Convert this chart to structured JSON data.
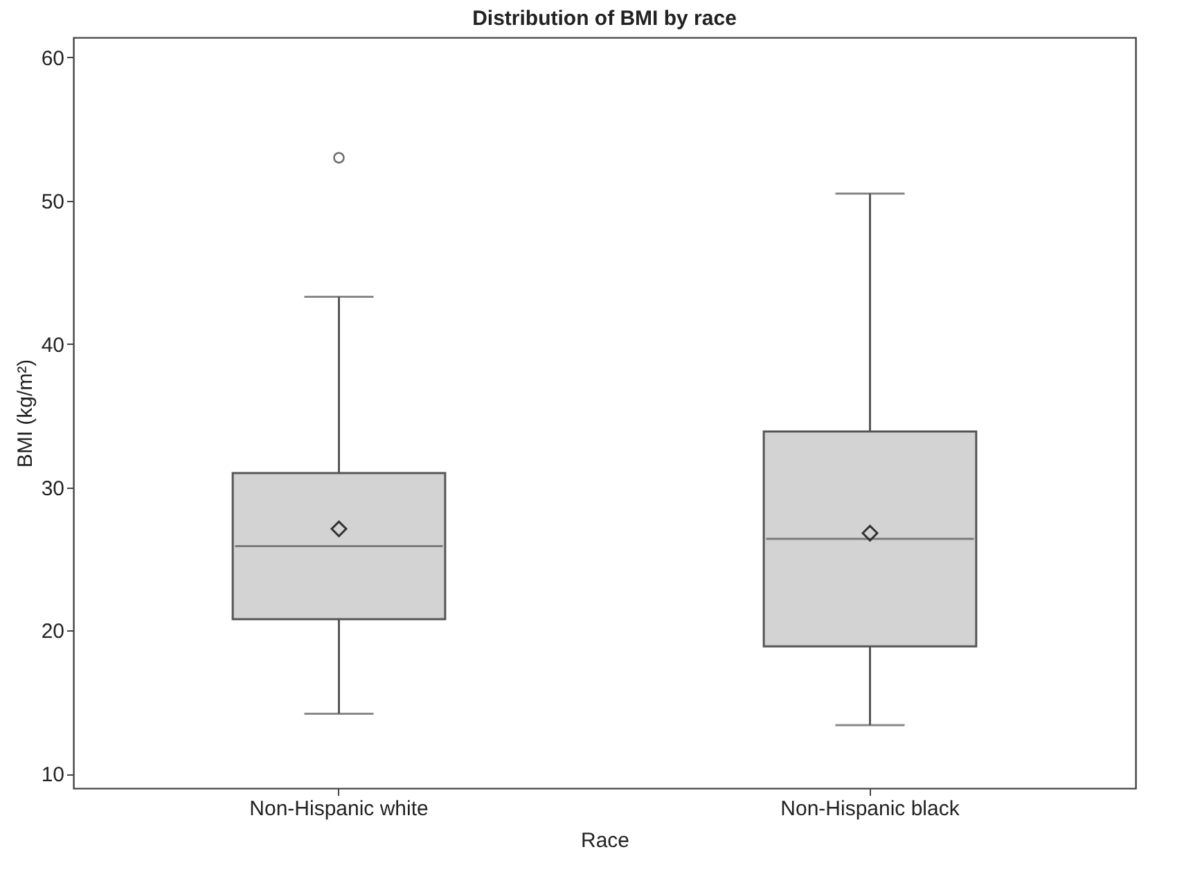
{
  "chart_data": {
    "type": "box",
    "title": "Distribution of BMI by race",
    "xlabel": "Race",
    "ylabel": "BMI (kg/m²)",
    "categories": [
      "Non-Hispanic white",
      "Non-Hispanic black"
    ],
    "boxes": [
      {
        "low": 14.2,
        "q1": 20.8,
        "median": 25.9,
        "q3": 31.0,
        "high": 43.3,
        "mean": 27.1,
        "outliers": [
          53.0
        ]
      },
      {
        "low": 13.4,
        "q1": 18.9,
        "median": 26.4,
        "q3": 33.9,
        "high": 50.5,
        "mean": 26.8
      }
    ],
    "color": "#d3d3d3",
    "ylim": [
      9,
      61.4
    ],
    "yticks": [
      10,
      20,
      30,
      40,
      50,
      60
    ],
    "grid": false,
    "marker": "diamond"
  }
}
